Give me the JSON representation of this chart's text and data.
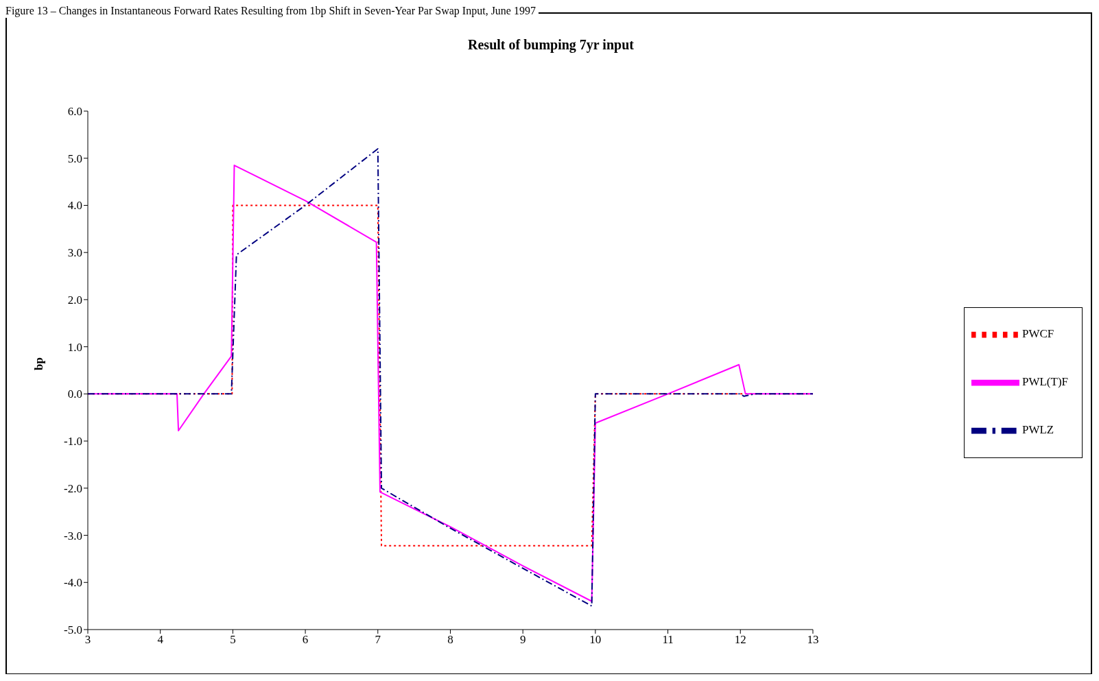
{
  "chart_data": {
    "type": "line",
    "title": "Result of bumping 7yr input",
    "ylabel": "bp",
    "annotations": [
      "Figure 13 – Changes in Instantaneous Forward Rates Resulting from 1bp Shift in Seven-Year Par Swap Input, June 1997"
    ],
    "xlim": [
      3,
      13
    ],
    "xticks": [
      3,
      4,
      5,
      6,
      7,
      8,
      9,
      10,
      11,
      12,
      13
    ],
    "ylim": [
      -5,
      6
    ],
    "yticks": [
      {
        "value": 6,
        "label": "6.0"
      },
      {
        "value": 5,
        "label": "5.0"
      },
      {
        "value": 4,
        "label": "4.0"
      },
      {
        "value": 3,
        "label": "3.0"
      },
      {
        "value": 2,
        "label": "2.0"
      },
      {
        "value": 1,
        "label": "1.0"
      },
      {
        "value": 0,
        "label": "0.0"
      },
      {
        "value": -1,
        "label": "-1.0"
      },
      {
        "value": -2,
        "label": "-2.0"
      },
      {
        "value": -3,
        "label": "-3.0"
      },
      {
        "value": -4,
        "label": "-4.0"
      },
      {
        "value": -5,
        "label": "-5.0"
      }
    ],
    "grid": false,
    "legend": "right",
    "marker": "none",
    "series": [
      {
        "name": "PWLZ",
        "color": "#000080",
        "line_style": "dashed",
        "x": [
          3,
          4.98,
          5.05,
          6,
          7,
          7.05,
          8,
          9,
          9.95,
          10,
          11,
          12,
          12.05,
          12.2,
          13
        ],
        "values": [
          0,
          0,
          2.95,
          4.0,
          5.2,
          -2.0,
          -2.85,
          -3.7,
          -4.5,
          0,
          0,
          0,
          -0.05,
          0,
          0
        ]
      },
      {
        "name": "PWL(T)F",
        "color": "#ff00ff",
        "line_style": "solid",
        "x": [
          3,
          4.23,
          4.25,
          4.6,
          4.98,
          5.02,
          6,
          6.98,
          7.03,
          8,
          9,
          9.95,
          10,
          11,
          11.98,
          12.07,
          13
        ],
        "values": [
          0,
          0,
          -0.78,
          0,
          0.8,
          4.85,
          4.1,
          3.22,
          -2.08,
          -2.82,
          -3.65,
          -4.4,
          -0.62,
          0,
          0.62,
          0,
          0
        ]
      },
      {
        "name": "PWCF",
        "color": "#ff0000",
        "line_style": "dotted",
        "x": [
          3,
          4.99,
          5,
          7,
          7.05,
          9.95,
          10,
          13
        ],
        "values": [
          0,
          0,
          4.0,
          4.0,
          -3.22,
          -3.22,
          0,
          0
        ]
      }
    ]
  }
}
